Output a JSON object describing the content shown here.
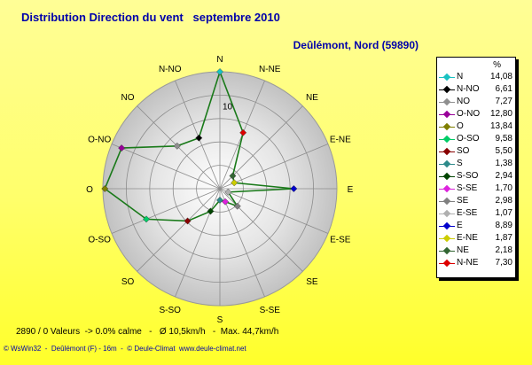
{
  "header": {
    "title": "Distribution Direction du vent   septembre 2010",
    "location": "Deûlémont, Nord (59890)"
  },
  "chart_data": {
    "type": "radar",
    "directions": [
      "N",
      "N-NE",
      "NE",
      "E-NE",
      "E",
      "E-SE",
      "SE",
      "S-SE",
      "S",
      "S-SO",
      "SO",
      "O-SO",
      "O",
      "O-NO",
      "NO",
      "N-NO"
    ],
    "values": [
      14.08,
      7.3,
      2.18,
      1.87,
      8.89,
      1.07,
      2.98,
      1.7,
      1.38,
      2.94,
      5.5,
      9.58,
      13.84,
      12.8,
      7.27,
      6.61
    ],
    "rmax": 14.08,
    "radial_tick_label": "10",
    "radial_tick_value": 10,
    "line_color": "#1a7a1a",
    "legend_header": "%",
    "legend": [
      {
        "name": "N",
        "value": "14,08",
        "color": "#19c2c2"
      },
      {
        "name": "N-NO",
        "value": "6,61",
        "color": "#000000"
      },
      {
        "name": "NO",
        "value": "7,27",
        "color": "#8f8f8f"
      },
      {
        "name": "O-NO",
        "value": "12,80",
        "color": "#990099"
      },
      {
        "name": "O",
        "value": "13,84",
        "color": "#7f7f00"
      },
      {
        "name": "O-SO",
        "value": "9,58",
        "color": "#00cc66"
      },
      {
        "name": "SO",
        "value": "5,50",
        "color": "#880000"
      },
      {
        "name": "S",
        "value": "1,38",
        "color": "#2d8a8a"
      },
      {
        "name": "S-SO",
        "value": "2,94",
        "color": "#004400"
      },
      {
        "name": "S-SE",
        "value": "1,70",
        "color": "#dd22dd"
      },
      {
        "name": "SE",
        "value": "2,98",
        "color": "#808080"
      },
      {
        "name": "E-SE",
        "value": "1,07",
        "color": "#b0b0b0"
      },
      {
        "name": "E",
        "value": "8,89",
        "color": "#0000cc"
      },
      {
        "name": "E-NE",
        "value": "1,87",
        "color": "#cccc00"
      },
      {
        "name": "NE",
        "value": "2,18",
        "color": "#336633"
      },
      {
        "name": "N-NE",
        "value": "7,30",
        "color": "#dd0000"
      }
    ],
    "marker_colors": {
      "N": "#19c2c2",
      "N-NE": "#dd0000",
      "NE": "#336633",
      "E-NE": "#cccc00",
      "E": "#0000cc",
      "E-SE": "#b0b0b0",
      "SE": "#808080",
      "S-SE": "#dd22dd",
      "S": "#2d8a8a",
      "S-SO": "#004400",
      "SO": "#880000",
      "O-SO": "#00cc66",
      "O": "#7f7f00",
      "O-NO": "#990099",
      "NO": "#8f8f8f",
      "N-NO": "#000000"
    }
  },
  "footer": {
    "stats": "2890 / 0 Valeurs  -> 0.0% calme   -   Ø 10,5km/h   -  Max. 44,7km/h",
    "credit": "© WsWin32  -  Deûlémont (F) - 16m  -  © Deule-Climat  www.deule-climat.net"
  }
}
